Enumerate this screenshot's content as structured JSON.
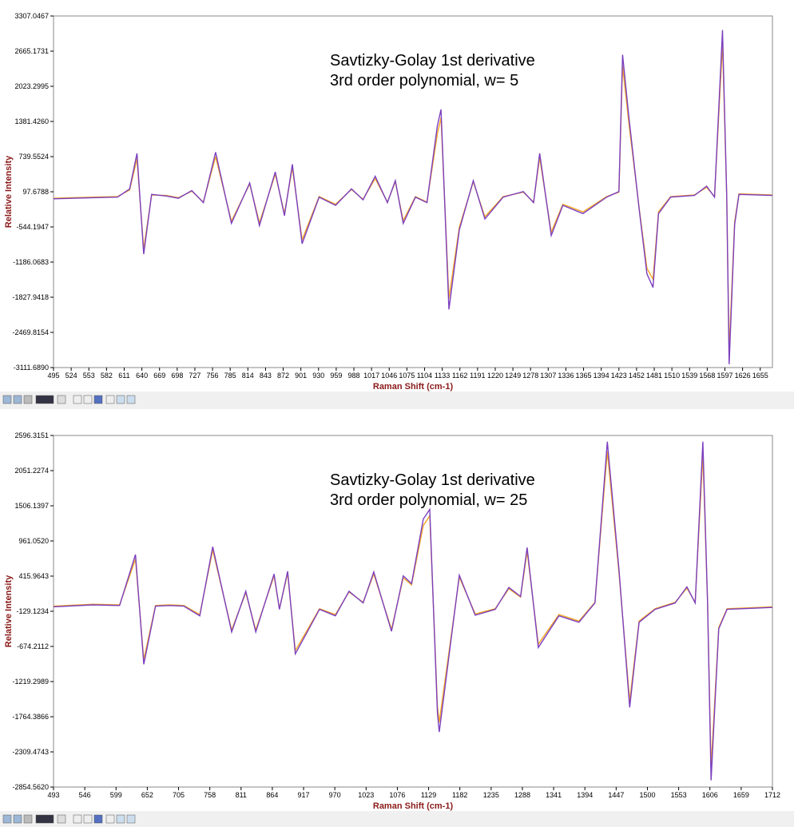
{
  "chart_data": [
    {
      "type": "line",
      "annotation": [
        "Savtizky-Golay 1st derivative",
        "3rd order polynomial, w= 5"
      ],
      "xlabel": "Raman Shift (cm-1)",
      "ylabel": "Relative Intensity",
      "xlim": [
        495,
        1675
      ],
      "ylim": [
        -3111.689,
        3307.0467
      ],
      "xticks": [
        495,
        524,
        553,
        582,
        611,
        640,
        669,
        698,
        727,
        756,
        785,
        814,
        843,
        872,
        901,
        930,
        959,
        988,
        1017,
        1046,
        1075,
        1104,
        1133,
        1162,
        1191,
        1220,
        1249,
        1278,
        1307,
        1336,
        1365,
        1394,
        1423,
        1452,
        1481,
        1510,
        1539,
        1568,
        1597,
        1626,
        1655
      ],
      "yticks": [
        3307.0467,
        2665.1731,
        2023.2995,
        {
          "value": 1381.426,
          "label": "1381.4260"
        },
        739.5524,
        97.6788,
        -544.1947,
        -1186.0683,
        -1827.9418,
        -2469.8154,
        {
          "value": -3111.689,
          "label": "-3111.6890"
        }
      ],
      "x": [
        495,
        560,
        600,
        620,
        632,
        643,
        656,
        680,
        700,
        722,
        741,
        761,
        787,
        817,
        833,
        859,
        874,
        887,
        903,
        931,
        958,
        984,
        1003,
        1023,
        1043,
        1056,
        1069,
        1089,
        1108,
        1125,
        1131,
        1144,
        1161,
        1184,
        1203,
        1233,
        1266,
        1283,
        1293,
        1312,
        1331,
        1364,
        1403,
        1423,
        1429,
        1439,
        1456,
        1469,
        1479,
        1488,
        1508,
        1547,
        1567,
        1580,
        1593,
        1600,
        1604,
        1613,
        1620,
        1675
      ],
      "series": [
        {
          "color": "#f5a623",
          "values": [
            -20,
            0,
            10,
            130,
            700,
            -950,
            40,
            30,
            -10,
            110,
            -90,
            740,
            -440,
            240,
            -470,
            420,
            -300,
            540,
            -780,
            10,
            -130,
            140,
            -40,
            340,
            -90,
            280,
            -430,
            10,
            -90,
            1150,
            1450,
            -1850,
            -550,
            280,
            -360,
            10,
            90,
            -90,
            720,
            -640,
            -130,
            -270,
            10,
            90,
            2400,
            1380,
            -180,
            -1300,
            -1500,
            -270,
            10,
            40,
            180,
            10,
            2800,
            10,
            -2800,
            -450,
            60,
            40
          ]
        },
        {
          "color": "#7b3fbf",
          "values": [
            -30,
            -10,
            0,
            150,
            800,
            -1040,
            50,
            20,
            -20,
            120,
            -100,
            820,
            -480,
            260,
            -520,
            460,
            -340,
            600,
            -850,
            0,
            -150,
            150,
            -50,
            380,
            -100,
            300,
            -480,
            0,
            -100,
            1300,
            1600,
            -2050,
            -600,
            300,
            -400,
            0,
            100,
            -100,
            800,
            -700,
            -150,
            -300,
            0,
            100,
            2600,
            1500,
            -200,
            -1400,
            -1650,
            -300,
            0,
            30,
            200,
            0,
            3050,
            0,
            -3050,
            -500,
            50,
            30
          ]
        }
      ]
    },
    {
      "type": "line",
      "annotation": [
        "Savtizky-Golay 1st derivative",
        "3rd order polynomial, w= 25"
      ],
      "xlabel": "Raman Shift (cm-1)",
      "ylabel": "Relative Intensity",
      "xlim": [
        493,
        1712
      ],
      "ylim": [
        -2854.562,
        2596.3151
      ],
      "xticks": [
        493,
        546,
        599,
        652,
        705,
        758,
        811,
        864,
        917,
        970,
        1023,
        1076,
        1129,
        1182,
        1235,
        1288,
        1341,
        1394,
        1447,
        1500,
        1553,
        1606,
        1659,
        1712
      ],
      "yticks": [
        2596.3151,
        2051.2274,
        1506.1397,
        {
          "value": 961.052,
          "label": "961.0520"
        },
        415.9643,
        -129.1234,
        -674.2112,
        -1219.2989,
        -1764.3866,
        -2309.4743,
        {
          "value": -2854.562,
          "label": "-2854.5620"
        }
      ],
      "x": [
        493,
        560,
        605,
        632,
        646,
        666,
        690,
        714,
        741,
        763,
        795,
        819,
        836,
        867,
        876,
        890,
        903,
        944,
        971,
        994,
        1018,
        1036,
        1066,
        1086,
        1100,
        1120,
        1131,
        1144,
        1147,
        1181,
        1208,
        1242,
        1265,
        1285,
        1296,
        1315,
        1350,
        1384,
        1411,
        1432,
        1452,
        1470,
        1486,
        1513,
        1547,
        1567,
        1581,
        1594,
        1602,
        1608,
        1621,
        1635,
        1712
      ],
      "series": [
        {
          "color": "#f5a623",
          "values": [
            -50,
            -20,
            -30,
            680,
            -880,
            -40,
            -30,
            -40,
            -180,
            820,
            -420,
            160,
            -420,
            420,
            -90,
            460,
            -740,
            -90,
            -180,
            170,
            10,
            450,
            -410,
            390,
            280,
            1200,
            1350,
            -1600,
            -1850,
            400,
            -170,
            -90,
            220,
            90,
            800,
            -640,
            -180,
            -280,
            10,
            2350,
            450,
            -1520,
            -280,
            -90,
            10,
            230,
            10,
            2300,
            10,
            -2550,
            -380,
            -90,
            -60
          ]
        },
        {
          "color": "#7b3fbf",
          "values": [
            -60,
            -30,
            -40,
            750,
            -950,
            -50,
            -40,
            -50,
            -200,
            870,
            -450,
            180,
            -450,
            450,
            -100,
            490,
            -790,
            -100,
            -200,
            180,
            0,
            480,
            -440,
            420,
            300,
            1300,
            1450,
            -1700,
            -2000,
            430,
            -190,
            -100,
            240,
            100,
            860,
            -690,
            -200,
            -300,
            0,
            2500,
            500,
            -1620,
            -300,
            -100,
            0,
            250,
            0,
            2500,
            0,
            -2750,
            -400,
            -100,
            -70
          ]
        }
      ]
    }
  ]
}
